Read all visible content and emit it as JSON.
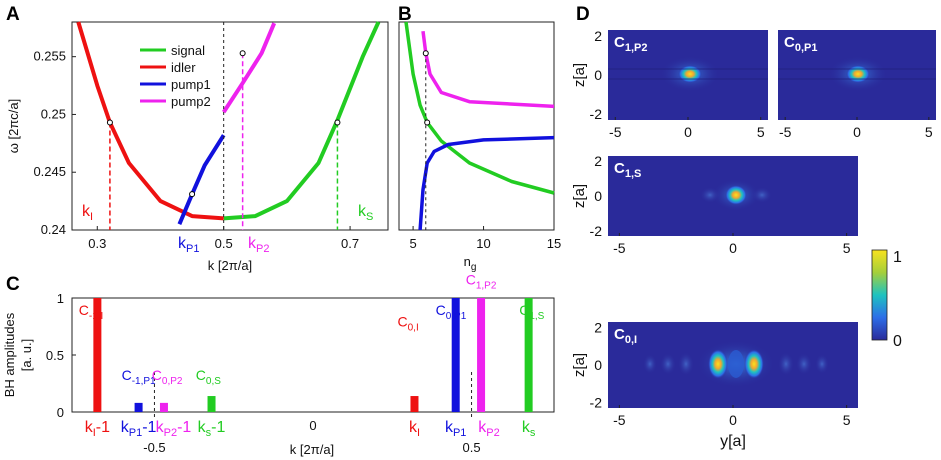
{
  "panels": {
    "a": "A",
    "b": "B",
    "c": "C",
    "d": "D"
  },
  "colors": {
    "signal": "#22cc22",
    "idler": "#ee1111",
    "pump1": "#1111dd",
    "pump2": "#ee22ee",
    "field_bg": "#2a2a9a"
  },
  "chart_data": [
    {
      "panel": "A",
      "type": "line",
      "xlabel": "k [2π/a]",
      "ylabel": "ω [2πc/a]",
      "xlim": [
        0.26,
        0.76
      ],
      "ylim": [
        0.24,
        0.258
      ],
      "xticks": [
        "0.3",
        "0.5",
        "0.7"
      ],
      "yticks": [
        "0.24",
        "0.245",
        "0.25",
        "0.255"
      ],
      "legend": [
        "signal",
        "idler",
        "pump1",
        "pump2"
      ],
      "series": [
        {
          "name": "signal",
          "x": [
            0.5,
            0.55,
            0.6,
            0.65,
            0.68,
            0.72,
            0.745
          ],
          "y": [
            0.241,
            0.2412,
            0.2425,
            0.2458,
            0.2495,
            0.255,
            0.258
          ]
        },
        {
          "name": "idler",
          "x": [
            0.27,
            0.3,
            0.32,
            0.35,
            0.4,
            0.45,
            0.5
          ],
          "y": [
            0.258,
            0.2525,
            0.2493,
            0.2458,
            0.2425,
            0.2412,
            0.241
          ]
        },
        {
          "name": "pump1",
          "x": [
            0.43,
            0.45,
            0.47,
            0.5
          ],
          "y": [
            0.2405,
            0.2431,
            0.2456,
            0.2482
          ]
        },
        {
          "name": "pump2",
          "x": [
            0.5,
            0.53,
            0.56,
            0.58
          ],
          "y": [
            0.2502,
            0.2527,
            0.2553,
            0.2579
          ]
        }
      ],
      "markers": [
        {
          "k": 0.32,
          "omega": 0.2493
        },
        {
          "k": 0.45,
          "omega": 0.2431
        },
        {
          "k": 0.53,
          "omega": 0.2553
        },
        {
          "k": 0.68,
          "omega": 0.2493
        }
      ],
      "annotations": {
        "k_i": "k",
        "k_i_sub": "I",
        "k_p1": "k",
        "k_p1_sub": "P1",
        "k_p2": "k",
        "k_p2_sub": "P2",
        "k_s": "k",
        "k_s_sub": "S"
      }
    },
    {
      "panel": "B",
      "type": "line",
      "xlabel": "n",
      "xlabel_sub": "g",
      "xlim": [
        4,
        15
      ],
      "ylim": [
        0.24,
        0.258
      ],
      "xticks": [
        "5",
        "10",
        "15"
      ],
      "series": [
        {
          "name": "signal",
          "x": [
            4.5,
            5.0,
            5.5,
            6.0,
            7.0,
            9.0,
            12.0,
            15.0
          ],
          "y": [
            0.258,
            0.2535,
            0.2508,
            0.2493,
            0.2477,
            0.2458,
            0.2442,
            0.2432
          ]
        },
        {
          "name": "pump1",
          "x": [
            5.5,
            5.7,
            6.0,
            6.5,
            7.5,
            10.0,
            15.0
          ],
          "y": [
            0.24,
            0.2435,
            0.2458,
            0.2468,
            0.2474,
            0.2478,
            0.248
          ]
        },
        {
          "name": "pump2",
          "x": [
            5.7,
            5.9,
            6.2,
            7.0,
            9.0,
            15.0
          ],
          "y": [
            0.2572,
            0.2553,
            0.2535,
            0.2519,
            0.2511,
            0.2507
          ]
        }
      ]
    },
    {
      "panel": "C",
      "type": "bar",
      "ylabel": "BH amplitudes",
      "ylabel2": "[a. u.]",
      "xlabel": "k [2π/a]",
      "ylim": [
        0,
        1
      ],
      "yticks": [
        "0",
        "0.5",
        "1"
      ],
      "xticks": [
        "-0.5",
        "0",
        "0.5"
      ],
      "bars": [
        {
          "label": "C",
          "sub": "-1,I",
          "k": -0.68,
          "value": 1.0,
          "color": "idler"
        },
        {
          "label": "C",
          "sub": "-1,P1",
          "k": -0.55,
          "value": 0.08,
          "color": "pump1"
        },
        {
          "label": "C",
          "sub": "0,P2",
          "k": -0.47,
          "value": 0.08,
          "color": "pump2"
        },
        {
          "label": "C",
          "sub": "0,S",
          "k": -0.32,
          "value": 0.14,
          "color": "signal"
        },
        {
          "label": "C",
          "sub": "0,I",
          "k": 0.32,
          "value": 0.14,
          "color": "idler"
        },
        {
          "label": "C",
          "sub": "0,P1",
          "k": 0.45,
          "value": 1.0,
          "color": "pump1"
        },
        {
          "label": "C",
          "sub": "1,P2",
          "k": 0.53,
          "value": 1.0,
          "color": "pump2"
        },
        {
          "label": "C",
          "sub": "1,S",
          "k": 0.68,
          "value": 1.0,
          "color": "signal"
        }
      ],
      "klabels": [
        {
          "text": "k",
          "sub": "I",
          "suffix": "-1",
          "color": "idler"
        },
        {
          "text": "k",
          "sub": "P1",
          "suffix": "-1",
          "color": "pump1"
        },
        {
          "text": "k",
          "sub": "P2",
          "suffix": "-1",
          "color": "pump2"
        },
        {
          "text": "k",
          "sub": "s",
          "suffix": "-1",
          "color": "signal"
        },
        {
          "text": "k",
          "sub": "I",
          "suffix": "",
          "color": "idler"
        },
        {
          "text": "k",
          "sub": "P1",
          "suffix": "",
          "color": "pump1"
        },
        {
          "text": "k",
          "sub": "P2",
          "suffix": "",
          "color": "pump2"
        },
        {
          "text": "k",
          "sub": "s",
          "suffix": "",
          "color": "signal"
        }
      ]
    },
    {
      "panel": "D",
      "type": "heatmap",
      "maps": [
        {
          "label": "C",
          "sub": "1,P2",
          "xticks": [
            "-5",
            "0",
            "5"
          ],
          "yticks": [
            "2",
            "0",
            "-2"
          ],
          "ylabel": "z[a]"
        },
        {
          "label": "C",
          "sub": "0,P1",
          "xticks": [
            "-5",
            "0",
            "5"
          ],
          "yticks": [],
          "ylabel": ""
        },
        {
          "label": "C",
          "sub": "1,S",
          "xticks": [
            "-5",
            "0",
            "5"
          ],
          "yticks": [
            "2",
            "0",
            "-2"
          ],
          "ylabel": "z[a]"
        },
        {
          "label": "C",
          "sub": "0,I",
          "xticks": [
            "-5",
            "0",
            "5"
          ],
          "yticks": [
            "2",
            "0",
            "-2"
          ],
          "ylabel": "z[a]",
          "xlabel": "y[a]"
        }
      ],
      "colorbar": {
        "min": "0",
        "max": "1"
      }
    }
  ]
}
